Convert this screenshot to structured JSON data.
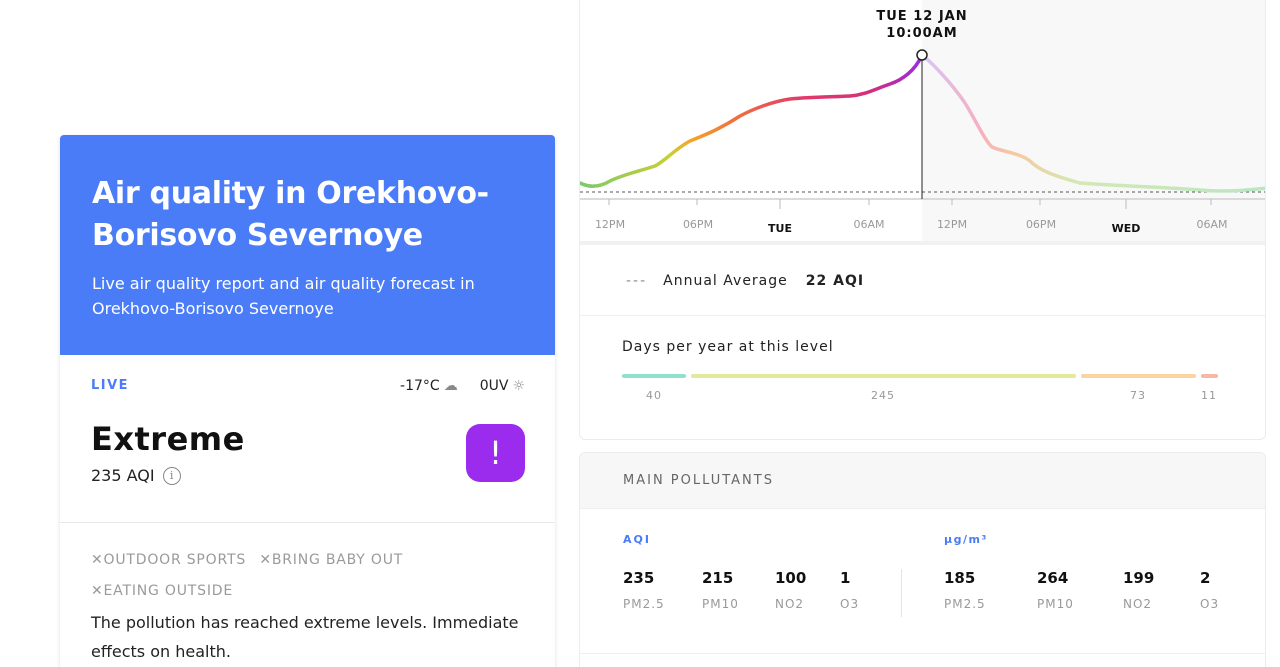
{
  "card": {
    "title": "Air quality in Orekhovo-Borisovo Severnoye",
    "subtitle": "Live air quality report and air quality forecast in Orekhovo-Borisovo Severnoye",
    "live_label": "LIVE",
    "temperature": "-17°C",
    "weather_icon": "cloud-icon",
    "uv": "0UV",
    "uv_icon": "sun-icon",
    "level": "Extreme",
    "aqi": "235 AQI",
    "alert_symbol": "!",
    "alert_color": "#9b2bed",
    "activities": [
      "OUTDOOR SPORTS",
      "BRING BABY OUT",
      "EATING OUTSIDE"
    ],
    "description": "The pollution has reached extreme levels. Immediate effects on health."
  },
  "forecast": {
    "highlight_day": "TUE 12 JAN",
    "highlight_time": "10:00AM",
    "ticks": [
      "12PM",
      "06PM",
      "TUE",
      "06AM",
      "12PM",
      "06PM",
      "WED",
      "06AM"
    ],
    "annual_dashes": "---",
    "annual_label": "Annual Average",
    "annual_value": "22 AQI"
  },
  "days": {
    "title": "Days per year at this level",
    "segments": [
      {
        "days": "40",
        "color": "#8fe0cf"
      },
      {
        "days": "245",
        "color": "#e4e89a"
      },
      {
        "days": "73",
        "color": "#fad3a0"
      },
      {
        "days": "11",
        "color": "#f7b8a3"
      }
    ]
  },
  "pollutants": {
    "title": "MAIN POLLUTANTS",
    "aqi_label": "AQI",
    "conc_label": "µg/m³",
    "aqi": [
      {
        "value": "235",
        "name": "PM2.5"
      },
      {
        "value": "215",
        "name": "PM10"
      },
      {
        "value": "100",
        "name": "NO2"
      },
      {
        "value": "1",
        "name": "O3"
      }
    ],
    "conc": [
      {
        "value": "185",
        "name": "PM2.5"
      },
      {
        "value": "264",
        "name": "PM10"
      },
      {
        "value": "199",
        "name": "NO2"
      },
      {
        "value": "2",
        "name": "O3"
      }
    ]
  }
}
